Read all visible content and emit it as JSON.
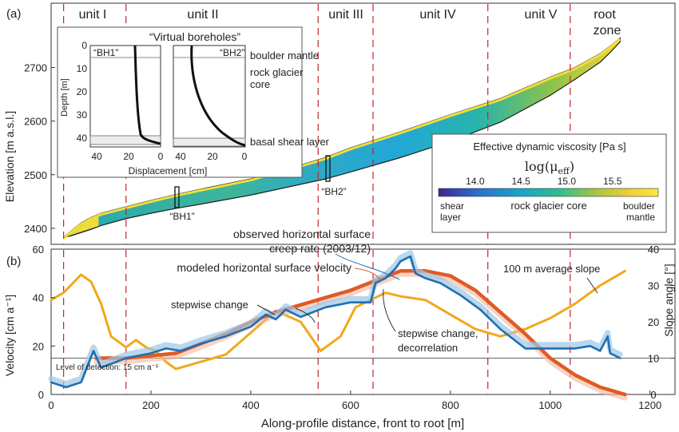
{
  "panel_labels": {
    "a": "(a)",
    "b": "(b)"
  },
  "units": [
    "unit I",
    "unit II",
    "unit III",
    "unit IV",
    "unit V",
    "root",
    "zone"
  ],
  "colorbar": {
    "title": "Effective dynamic viscosity [Pa s]",
    "formula": "log(μ",
    "formula_sub": "eff",
    "formula_close": ")",
    "ticks": [
      "14.0",
      "14.5",
      "15.0",
      "15.5"
    ],
    "range": [
      13.6,
      16.0
    ],
    "colors": [
      "#3b2a8c",
      "#2c6fd1",
      "#1aa6c8",
      "#2fbf8f",
      "#a8c640",
      "#f4cf3a",
      "#f9e93a"
    ],
    "labels": {
      "left": "shear",
      "left2": "layer",
      "middle": "rock glacier core",
      "right": "boulder",
      "right2": "mantle"
    }
  },
  "inset": {
    "title": "“Virtual boreholes”",
    "bh1": "“BH1”",
    "bh2": "“BH2”",
    "ylabel": "Depth [m]",
    "xlabel": "Displacement [cm]",
    "yticks": [
      "0",
      "10",
      "20",
      "30",
      "40"
    ],
    "xticks_left": [
      "40",
      "20",
      "0"
    ],
    "xticks_right": [
      "40",
      "20",
      "0"
    ],
    "side_labels": {
      "mantle": "boulder mantle",
      "core1": "rock glacier",
      "core2": "core",
      "shear": "basal shear layer"
    }
  },
  "borehole_markers": {
    "bh1": "“BH1”",
    "bh2": "“BH2”"
  },
  "annotations": {
    "observed": "observed horizontal surface",
    "observed2": "creep rate (2003/12)",
    "modeled": "modeled horizontal surface velocity",
    "slope": "100 m average slope",
    "step1": "stepwise change",
    "step2": "stepwise change,",
    "step2b": "decorrelation",
    "lod": "Level of detection: 15 cm a⁻¹"
  },
  "chart_data": [
    {
      "type": "area",
      "panel": "(a)",
      "xlabel": "",
      "ylabel": "Elevation  [m a.s.l.]",
      "xlim": [
        0,
        1250
      ],
      "ylim": [
        2370,
        2820
      ],
      "yticks": [
        "2400",
        "2500",
        "2600",
        "2700"
      ],
      "unit_boundaries_m": [
        25,
        150,
        535,
        645,
        875,
        1040
      ],
      "profile_x_m": [
        25,
        40,
        60,
        80,
        100,
        150,
        200,
        250,
        300,
        400,
        500,
        550,
        600,
        700,
        800,
        900,
        1000,
        1050,
        1100,
        1120,
        1140
      ],
      "surface_elevation_m": [
        2383,
        2395,
        2410,
        2420,
        2428,
        2440,
        2452,
        2463,
        2473,
        2492,
        2518,
        2532,
        2550,
        2580,
        2612,
        2642,
        2682,
        2700,
        2726,
        2740,
        2755
      ],
      "bed_elevation_m": [
        2383,
        2386,
        2392,
        2398,
        2405,
        2418,
        2428,
        2437,
        2445,
        2462,
        2482,
        2492,
        2505,
        2532,
        2562,
        2598,
        2648,
        2678,
        2710,
        2728,
        2748
      ],
      "borehole_x_m": {
        "BH1": 245,
        "BH2": 570
      }
    },
    {
      "type": "line",
      "panel": "(b)",
      "xlabel": "Along-profile distance, front to root [m]",
      "ylabel": "Velocity [cm a⁻¹]",
      "y2label": "Slope angle [°]",
      "xlim": [
        0,
        1250
      ],
      "ylim": [
        0,
        60
      ],
      "y2lim": [
        0,
        40
      ],
      "xticks": [
        "0",
        "200",
        "400",
        "600",
        "800",
        "1000",
        "1200"
      ],
      "yticks": [
        "0",
        "20",
        "40",
        "60"
      ],
      "y2ticks": [
        "0",
        "10",
        "20",
        "30",
        "40"
      ],
      "level_of_detection": 15,
      "series": [
        {
          "name": "observed horizontal surface creep rate (2003/12)",
          "color": "#1f6fb2",
          "x": [
            0,
            30,
            60,
            75,
            85,
            100,
            150,
            200,
            230,
            260,
            300,
            350,
            400,
            430,
            450,
            470,
            500,
            550,
            600,
            640,
            650,
            670,
            690,
            700,
            720,
            730,
            750,
            780,
            820,
            860,
            900,
            950,
            1000,
            1050,
            1080,
            1100,
            1115,
            1120,
            1140
          ],
          "y": [
            5,
            3,
            5,
            13,
            18,
            11,
            15,
            17,
            19,
            18,
            21,
            24,
            28,
            33,
            31,
            35,
            32,
            36,
            38,
            38,
            46,
            48,
            52,
            55,
            57,
            50,
            48,
            46,
            41,
            35,
            27,
            19,
            19,
            19,
            20,
            18,
            24,
            17,
            15
          ]
        },
        {
          "name": "modeled horizontal surface velocity",
          "color": "#e05a26",
          "x": [
            90,
            150,
            200,
            250,
            300,
            350,
            400,
            450,
            500,
            550,
            600,
            650,
            700,
            750,
            800,
            850,
            900,
            950,
            1000,
            1050,
            1100,
            1150
          ],
          "y": [
            15,
            15,
            16,
            17,
            21,
            25,
            30,
            34,
            37,
            40,
            43,
            47,
            51,
            51,
            49,
            43,
            34,
            25,
            15,
            8,
            3,
            0
          ]
        },
        {
          "name": "100 m average slope",
          "color": "#f0a91c",
          "x": [
            0,
            25,
            60,
            80,
            100,
            120,
            140,
            150,
            170,
            190,
            210,
            230,
            250,
            300,
            350,
            400,
            450,
            500,
            540,
            580,
            610,
            640,
            670,
            700,
            750,
            800,
            850,
            900,
            950,
            1000,
            1050,
            1100,
            1150
          ],
          "y2": [
            26,
            28,
            33,
            31,
            25,
            16,
            14,
            13,
            15,
            13,
            12,
            9,
            7,
            9,
            11,
            17,
            23,
            20,
            12,
            16,
            24,
            26,
            28,
            27,
            26,
            22,
            18,
            16,
            18,
            21,
            25,
            30,
            34
          ]
        }
      ]
    }
  ]
}
